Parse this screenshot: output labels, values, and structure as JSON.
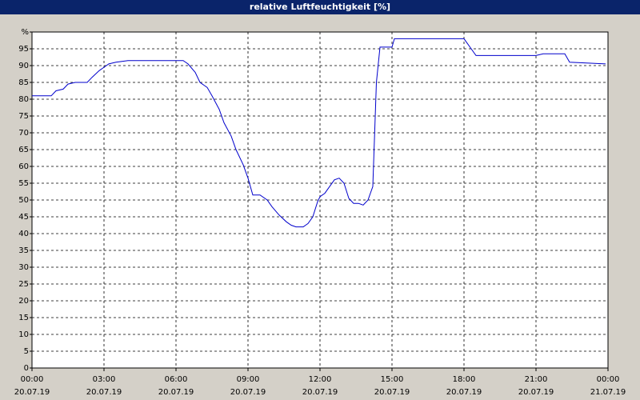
{
  "chart_data": {
    "type": "line",
    "title": "relative Luftfeuchtigkeit [%]",
    "x": [
      0,
      0.8,
      1.0,
      1.3,
      1.5,
      1.8,
      2.3,
      2.5,
      2.8,
      3.0,
      3.2,
      3.5,
      4.0,
      5.0,
      6.0,
      6.3,
      6.5,
      6.8,
      7.0,
      7.3,
      7.5,
      7.8,
      8.0,
      8.3,
      8.5,
      8.8,
      9.0,
      9.2,
      9.5,
      9.8,
      10.0,
      10.3,
      10.6,
      10.8,
      11.0,
      11.3,
      11.5,
      11.7,
      11.9,
      12.0,
      12.2,
      12.4,
      12.6,
      12.8,
      13.0,
      13.2,
      13.4,
      13.6,
      13.8,
      14.0,
      14.2,
      14.35,
      14.5,
      15.0,
      15.1,
      18.0,
      18.3,
      18.5,
      21.0,
      21.3,
      22.2,
      22.4,
      23.9
    ],
    "series": [
      {
        "color": "#0000cc",
        "values": [
          81,
          81,
          82.5,
          83,
          84.5,
          85,
          85,
          86.5,
          88.5,
          89.5,
          90.5,
          91,
          91.5,
          91.5,
          91.5,
          91.5,
          90.5,
          88,
          85,
          83.5,
          81,
          77,
          73,
          69,
          65,
          60.5,
          56.5,
          51.5,
          51.5,
          50,
          48,
          45.5,
          43.5,
          42.5,
          42,
          42,
          43,
          45,
          49.5,
          51,
          52,
          54,
          56,
          56.5,
          55,
          50.5,
          49,
          49,
          48.5,
          50,
          54,
          85,
          95.5,
          95.5,
          98,
          98,
          95,
          93,
          93,
          93.5,
          93.5,
          91,
          90.5
        ]
      }
    ],
    "xlim": [
      0,
      24
    ],
    "xticks": [
      {
        "value": 0,
        "label": "00:00"
      },
      {
        "value": 3,
        "label": "03:00"
      },
      {
        "value": 6,
        "label": "06:00"
      },
      {
        "value": 9,
        "label": "09:00"
      },
      {
        "value": 12,
        "label": "12:00"
      },
      {
        "value": 15,
        "label": "15:00"
      },
      {
        "value": 18,
        "label": "18:00"
      },
      {
        "value": 21,
        "label": "21:00"
      },
      {
        "value": 24,
        "label": "00:00"
      }
    ],
    "xtick_dates": [
      "20.07.19",
      "20.07.19",
      "20.07.19",
      "20.07.19",
      "20.07.19",
      "20.07.19",
      "20.07.19",
      "20.07.19",
      "21.07.19"
    ],
    "ylim": [
      0,
      100
    ],
    "yticks": [
      0,
      5,
      10,
      15,
      20,
      25,
      30,
      35,
      40,
      45,
      50,
      55,
      60,
      65,
      70,
      75,
      80,
      85,
      90,
      95,
      {
        "value": 100,
        "label": "%"
      }
    ],
    "grid": true
  }
}
